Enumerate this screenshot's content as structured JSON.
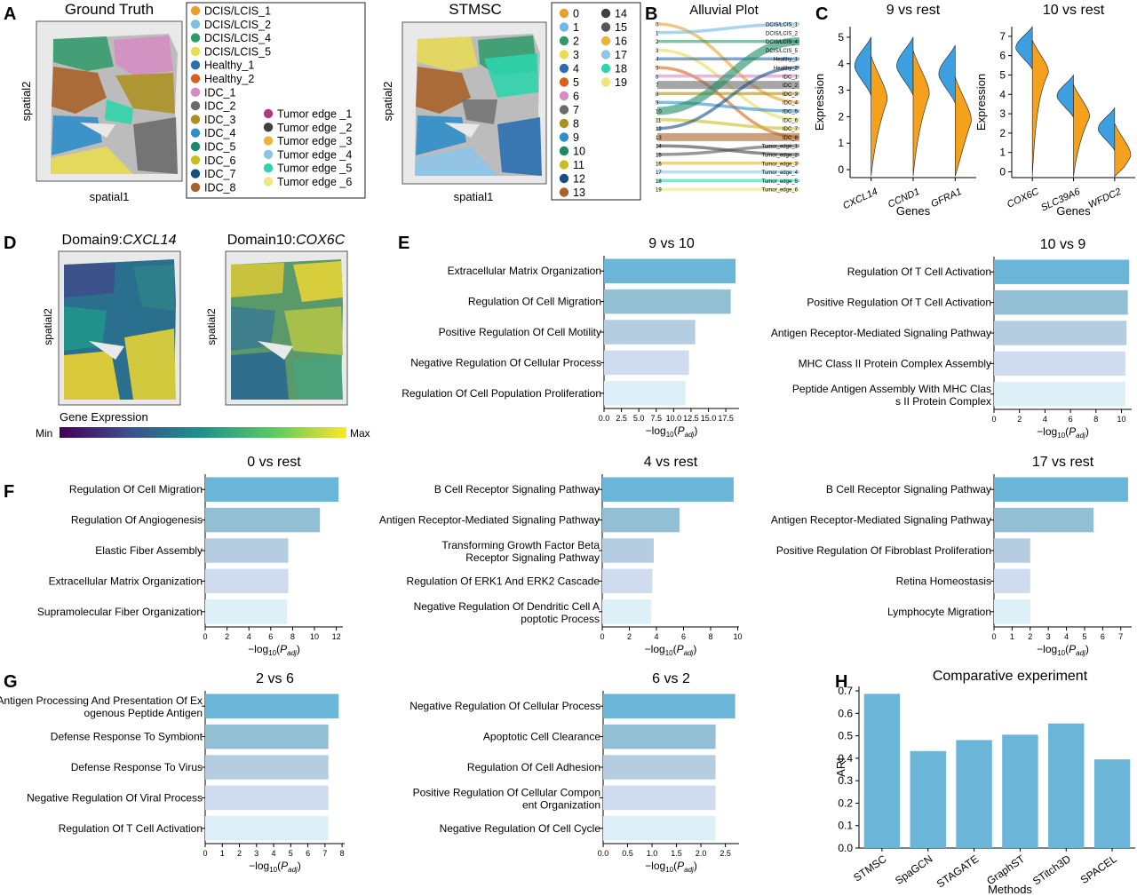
{
  "panel_letters": [
    "A",
    "B",
    "C",
    "D",
    "E",
    "F",
    "G",
    "H"
  ],
  "colors": {
    "bar_palette": [
      "#6ab5d8",
      "#93bfd4",
      "#b4cde0",
      "#cfdcf0",
      "#ddeff7"
    ],
    "bar_H": "#6ab5d8",
    "violin_left": "#3d9fdf",
    "violin_right": "#f5a11c",
    "tissue": "#bcbcbc"
  },
  "panelA": {
    "gt_title": "Ground Truth",
    "st_title": "STMSC",
    "xlabel": "spatial1",
    "ylabel": "spatial2",
    "gt_legend": [
      {
        "label": "DCIS/LCIS_1",
        "color": "#e8a02a"
      },
      {
        "label": "DCIS/LCIS_2",
        "color": "#7fbfe6"
      },
      {
        "label": "DCIS/LCIS_4",
        "color": "#2e9a6a"
      },
      {
        "label": "DCIS/LCIS_5",
        "color": "#e8dc52"
      },
      {
        "label": "Healthy_1",
        "color": "#2a6fb0"
      },
      {
        "label": "Healthy_2",
        "color": "#d86018"
      },
      {
        "label": "IDC_1",
        "color": "#d68bc3"
      },
      {
        "label": "IDC_2",
        "color": "#6b6b6b"
      },
      {
        "label": "IDC_3",
        "color": "#ad8f1d"
      },
      {
        "label": "IDC_4",
        "color": "#2f8ec9"
      },
      {
        "label": "IDC_5",
        "color": "#1c8a64"
      },
      {
        "label": "IDC_6",
        "color": "#c8bd24"
      },
      {
        "label": "IDC_7",
        "color": "#174f80"
      },
      {
        "label": "IDC_8",
        "color": "#a8622a"
      },
      {
        "label": "Tumor edge _1",
        "color": "#b03a7a"
      },
      {
        "label": "Tumor edge _2",
        "color": "#404040"
      },
      {
        "label": "Tumor edge _3",
        "color": "#eeb43a"
      },
      {
        "label": "Tumor edge _4",
        "color": "#8fc4e8"
      },
      {
        "label": "Tumor edge _5",
        "color": "#2fd3ac"
      },
      {
        "label": "Tumor edge _6",
        "color": "#f0e57c"
      }
    ],
    "st_legend": [
      {
        "label": "0",
        "color": "#e8a02a"
      },
      {
        "label": "1",
        "color": "#6fb8e6"
      },
      {
        "label": "2",
        "color": "#2e9a6a"
      },
      {
        "label": "3",
        "color": "#e8dc52"
      },
      {
        "label": "4",
        "color": "#2a6fb0"
      },
      {
        "label": "5",
        "color": "#d86018"
      },
      {
        "label": "6",
        "color": "#d68bc3"
      },
      {
        "label": "7",
        "color": "#6b6b6b"
      },
      {
        "label": "8",
        "color": "#ad8f1d"
      },
      {
        "label": "9",
        "color": "#2f8ec9"
      },
      {
        "label": "10",
        "color": "#1c8a64"
      },
      {
        "label": "11",
        "color": "#c8bd24"
      },
      {
        "label": "12",
        "color": "#174f80"
      },
      {
        "label": "13",
        "color": "#a8622a"
      },
      {
        "label": "14",
        "color": "#404040"
      },
      {
        "label": "15",
        "color": "#555555"
      },
      {
        "label": "16",
        "color": "#eeb43a"
      },
      {
        "label": "17",
        "color": "#8fc4e8"
      },
      {
        "label": "18",
        "color": "#2fd3ac"
      },
      {
        "label": "19",
        "color": "#f0e57c"
      }
    ]
  },
  "panelB": {
    "title": "Alluvial Plot",
    "left_labels": [
      "0",
      "1",
      "2",
      "3",
      "4",
      "5",
      "6",
      "7",
      "8",
      "9",
      "10",
      "11",
      "12",
      "13",
      "14",
      "15",
      "16",
      "17",
      "18",
      "19"
    ],
    "right_labels": [
      "DCIS/LCIS_1",
      "DCIS/LCIS_2",
      "DCIS/LCIS_4",
      "DCIS/LCIS_5",
      "Healthy_1",
      "Healthy_2",
      "IDC_1",
      "IDC_2",
      "IDC_3",
      "IDC_4",
      "IDC_5",
      "IDC_6",
      "IDC_7",
      "IDC_8",
      "Tumor_edge_1",
      "Tumor_edge_2",
      "Tumor_edge_3",
      "Tumor_edge_4",
      "Tumor_edge_5",
      "Tumor_edge_6"
    ]
  },
  "panelD": {
    "title1": "Domain9:",
    "gene1": "CXCL14",
    "title2": "Domain10:",
    "gene2": "COX6C",
    "ylabel": "spatial2",
    "cbar_label": "Gene Expression",
    "cbar_min": "Min",
    "cbar_max": "Max"
  },
  "chart_data": [
    {
      "panel": "C1",
      "type": "violin",
      "title": "9 vs rest",
      "categories": [
        "CXCL14",
        "CCND1",
        "GFRA1"
      ],
      "xlabel": "Genes",
      "ylabel": "Expression",
      "ylim": [
        -0.3,
        5.4
      ],
      "yticks": [
        0,
        1,
        2,
        3,
        4,
        5
      ],
      "series": [
        {
          "side": "left",
          "medians": [
            4.0,
            4.0,
            3.7
          ]
        },
        {
          "side": "right",
          "medians": [
            2.8,
            3.0,
            2.0
          ]
        }
      ]
    },
    {
      "panel": "C2",
      "type": "violin",
      "title": "10 vs rest",
      "categories": [
        "COX6C",
        "SLC39A6",
        "WFDC2"
      ],
      "xlabel": "Genes",
      "ylabel": "Expression",
      "ylim": [
        -0.3,
        7.5
      ],
      "yticks": [
        0,
        1,
        2,
        3,
        4,
        5,
        6,
        7
      ],
      "series": [
        {
          "side": "left",
          "medians": [
            6.5,
            4.0,
            2.3
          ]
        },
        {
          "side": "right",
          "medians": [
            5.3,
            3.0,
            1.0
          ]
        }
      ]
    },
    {
      "panel": "E1",
      "type": "bar",
      "orientation": "horizontal",
      "title": "9 vs 10",
      "categories": [
        "Extracellular Matrix Organization",
        "Regulation Of Cell Migration",
        "Positive Regulation Of Cell Motility",
        "Negative Regulation Of Cellular Process",
        "Regulation Of Cell Population Proliferation"
      ],
      "values": [
        18.9,
        18.2,
        13.1,
        12.2,
        11.7
      ],
      "xticks": [
        "0.0",
        "2.5",
        "5.0",
        "7.5",
        "10.0",
        "12.5",
        "15.0",
        "17.5"
      ],
      "xlim": [
        0,
        19.4
      ],
      "xlabel_pre": "−log",
      "xlabel_sub": "10",
      "xlabel_mid": "(",
      "xlabel_p": "P",
      "xlabel_adj": "adj",
      "xlabel_post": ")"
    },
    {
      "panel": "E2",
      "type": "bar",
      "orientation": "horizontal",
      "title": "10 vs 9",
      "categories": [
        "Regulation Of T Cell Activation",
        "Positive Regulation Of T Cell Activation",
        "Antigen Receptor-Mediated Signaling Pathway",
        "MHC Class II Protein Complex Assembly",
        "Peptide Antigen Assembly With MHC Class II Protein Complex"
      ],
      "values": [
        10.6,
        10.5,
        10.4,
        10.3,
        10.3
      ],
      "xticks": [
        "0",
        "2",
        "4",
        "6",
        "8",
        "10"
      ],
      "xlim": [
        0,
        10.8
      ],
      "xlabel_pre": "−log",
      "xlabel_sub": "10",
      "xlabel_mid": "(",
      "xlabel_p": "P",
      "xlabel_adj": "adj",
      "xlabel_post": ")"
    },
    {
      "panel": "F1",
      "type": "bar",
      "orientation": "horizontal",
      "title": "0 vs rest",
      "categories": [
        "Regulation Of Cell Migration",
        "Regulation Of Angiogenesis",
        "Elastic Fiber Assembly",
        "Extracellular Matrix Organization",
        "Supramolecular Fiber Organization"
      ],
      "values": [
        12.2,
        10.5,
        7.6,
        7.6,
        7.5
      ],
      "xticks": [
        "0",
        "2",
        "4",
        "6",
        "8",
        "10",
        "12"
      ],
      "xlim": [
        0,
        12.6
      ],
      "xlabel_pre": "−log",
      "xlabel_sub": "10",
      "xlabel_mid": "(",
      "xlabel_p": "P",
      "xlabel_adj": "adj",
      "xlabel_post": ")"
    },
    {
      "panel": "F2",
      "type": "bar",
      "orientation": "horizontal",
      "title": "4 vs rest",
      "categories": [
        "B Cell Receptor Signaling Pathway",
        "Antigen Receptor-Mediated Signaling Pathway",
        "Transforming Growth Factor Beta Receptor Signaling Pathway",
        "Regulation Of ERK1 And ERK2 Cascade",
        "Negative Regulation Of Dendritic Cell Apoptotic Process"
      ],
      "values": [
        9.7,
        5.7,
        3.8,
        3.7,
        3.6
      ],
      "xticks": [
        "0",
        "2",
        "4",
        "6",
        "8",
        "10"
      ],
      "xlim": [
        0,
        10.1
      ],
      "xlabel_pre": "−log",
      "xlabel_sub": "10",
      "xlabel_mid": "(",
      "xlabel_p": "P",
      "xlabel_adj": "adj",
      "xlabel_post": ")"
    },
    {
      "panel": "F3",
      "type": "bar",
      "orientation": "horizontal",
      "title": "17 vs rest",
      "categories": [
        "B Cell Receptor Signaling Pathway",
        "Antigen Receptor-Mediated Signaling Pathway",
        "Positive Regulation Of Fibroblast Proliferation",
        "Retina Homeostasis",
        "Lymphocyte Migration"
      ],
      "values": [
        7.4,
        5.5,
        2.0,
        2.0,
        2.0
      ],
      "xticks": [
        "0",
        "1",
        "2",
        "3",
        "4",
        "5",
        "6",
        "7"
      ],
      "xlim": [
        0,
        7.6
      ],
      "xlabel_pre": "−log",
      "xlabel_sub": "10",
      "xlabel_mid": "(",
      "xlabel_p": "P",
      "xlabel_adj": "adj",
      "xlabel_post": ")"
    },
    {
      "panel": "G1",
      "type": "bar",
      "orientation": "horizontal",
      "title": "2 vs 6",
      "categories": [
        "Antigen Processing And Presentation Of Exogenous Peptide Antigen",
        "Defense Response To Symbiont",
        "Defense Response To Virus",
        "Negative Regulation Of Viral Process",
        "Regulation Of T Cell Activation"
      ],
      "values": [
        7.8,
        7.2,
        7.2,
        7.2,
        7.2
      ],
      "xticks": [
        "0",
        "1",
        "2",
        "3",
        "4",
        "5",
        "6",
        "7",
        "8"
      ],
      "xlim": [
        0,
        8.15
      ],
      "xlabel_pre": "−log",
      "xlabel_sub": "10",
      "xlabel_mid": "(",
      "xlabel_p": "P",
      "xlabel_adj": "adj",
      "xlabel_post": ")"
    },
    {
      "panel": "G2",
      "type": "bar",
      "orientation": "horizontal",
      "title": "6 vs 2",
      "categories": [
        "Negative Regulation Of Cellular Process",
        "Apoptotic Cell Clearance",
        "Regulation Of Cell Adhesion",
        "Positive Regulation Of Cellular Component Organization",
        "Negative Regulation Of Cell Cycle"
      ],
      "values": [
        2.7,
        2.3,
        2.3,
        2.3,
        2.3
      ],
      "xticks": [
        "0.0",
        "0.5",
        "1.0",
        "1.5",
        "2.0",
        "2.5"
      ],
      "xlim": [
        0,
        2.78
      ],
      "xlabel_pre": "−log",
      "xlabel_sub": "10",
      "xlabel_mid": "(",
      "xlabel_p": "P",
      "xlabel_adj": "adj",
      "xlabel_post": ")"
    },
    {
      "panel": "H",
      "type": "bar",
      "orientation": "vertical",
      "title": "Comparative experiment",
      "categories": [
        "STMSC",
        "SpaGCN",
        "STAGATE",
        "GraphST",
        "STitch3D",
        "SPACEL"
      ],
      "values": [
        0.687,
        0.432,
        0.481,
        0.505,
        0.555,
        0.395
      ],
      "xlabel": "Methods",
      "ylabel": "ARI",
      "ylim": [
        0,
        0.72
      ],
      "yticks": [
        "0.0",
        "0.1",
        "0.2",
        "0.3",
        "0.4",
        "0.5",
        "0.6",
        "0.7"
      ]
    }
  ]
}
